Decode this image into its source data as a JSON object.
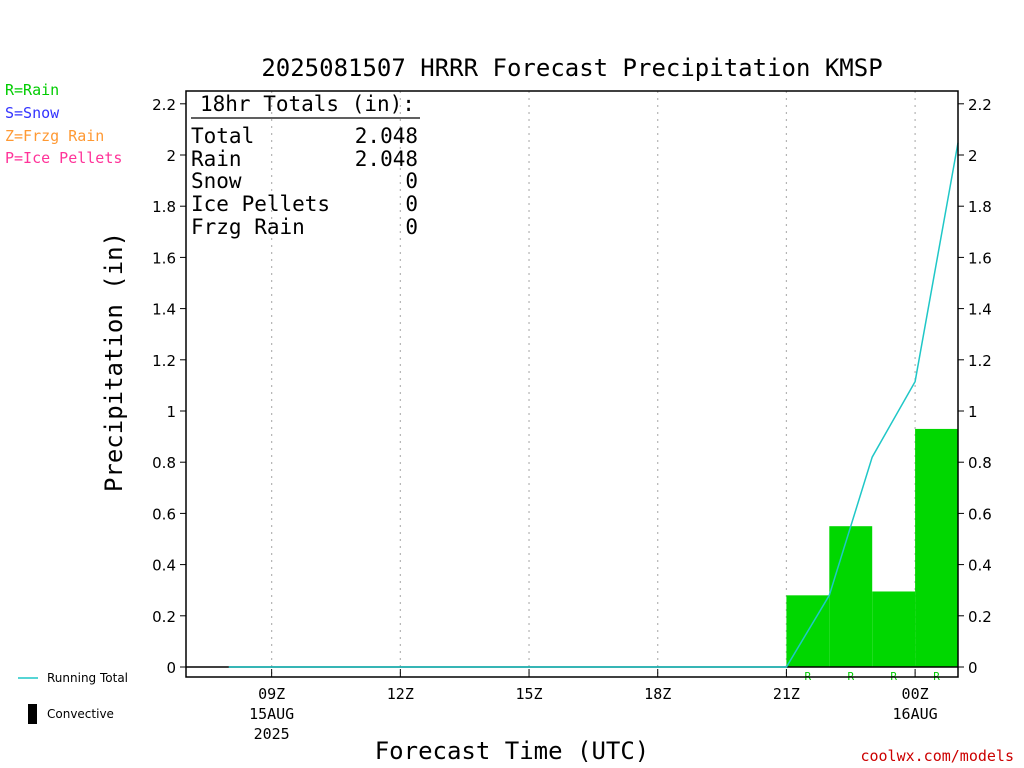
{
  "legend": {
    "codes": [
      {
        "label": "R=Rain",
        "color": "#00cc00"
      },
      {
        "label": "S=Snow",
        "color": "#3333ff"
      },
      {
        "label": "Z=Frzg Rain",
        "color": "#ff9933"
      },
      {
        "label": "P=Ice Pellets",
        "color": "#ff3399"
      }
    ],
    "running_total": "Running Total",
    "convective": "Convective"
  },
  "totals_box": {
    "header": "18hr Totals (in):",
    "rows": [
      {
        "label": "Total",
        "value": "2.048"
      },
      {
        "label": "Rain",
        "value": "2.048"
      },
      {
        "label": "Snow",
        "value": "0"
      },
      {
        "label": "Ice Pellets",
        "value": "0"
      },
      {
        "label": "Frzg Rain",
        "value": "0"
      }
    ]
  },
  "credit": "coolwx.com/models",
  "colors": {
    "rain": "#00d700",
    "running_total": "#1fc7c7",
    "convective": "#000000",
    "credit": "#cc0000"
  },
  "chart_data": {
    "type": "bar",
    "title": "2025081507 HRRR Forecast Precipitation KMSP",
    "xlabel": "Forecast Time (UTC)",
    "ylabel": "Precipitation (in)",
    "ylim": [
      0,
      2.2
    ],
    "yticks": [
      0,
      0.2,
      0.4,
      0.6,
      0.8,
      1,
      1.2,
      1.4,
      1.6,
      1.8,
      2,
      2.2
    ],
    "ytick_labels": [
      "0",
      "0.2",
      "0.4",
      "0.6",
      "0.8",
      "1",
      "1.2",
      "1.4",
      "1.6",
      "1.8",
      "2",
      "2.2"
    ],
    "x_range": [
      "2025-08-15 07Z",
      "2025-08-16 01Z"
    ],
    "xticks": [
      {
        "time": "2025-08-15 09Z",
        "label": "09Z",
        "date": "15AUG",
        "year": "2025"
      },
      {
        "time": "2025-08-15 12Z",
        "label": "12Z"
      },
      {
        "time": "2025-08-15 15Z",
        "label": "15Z"
      },
      {
        "time": "2025-08-15 18Z",
        "label": "18Z"
      },
      {
        "time": "2025-08-15 21Z",
        "label": "21Z"
      },
      {
        "time": "2025-08-16 00Z",
        "label": "00Z",
        "date": "16AUG"
      }
    ],
    "grid": "vertical dotted",
    "series": [
      {
        "name": "Rain",
        "kind": "hourly bars",
        "times": [
          "2025-08-15 22Z",
          "2025-08-15 23Z",
          "2025-08-16 00Z",
          "2025-08-16 01Z"
        ],
        "values": [
          0.28,
          0.55,
          0.295,
          0.93
        ],
        "ptype": [
          "R",
          "R",
          "R",
          "R"
        ]
      },
      {
        "name": "Running Total",
        "kind": "line",
        "times": [
          "2025-08-15 08Z",
          "2025-08-15 09Z",
          "2025-08-15 10Z",
          "2025-08-15 11Z",
          "2025-08-15 12Z",
          "2025-08-15 13Z",
          "2025-08-15 14Z",
          "2025-08-15 15Z",
          "2025-08-15 16Z",
          "2025-08-15 17Z",
          "2025-08-15 18Z",
          "2025-08-15 19Z",
          "2025-08-15 20Z",
          "2025-08-15 21Z",
          "2025-08-15 22Z",
          "2025-08-15 23Z",
          "2025-08-16 00Z",
          "2025-08-16 01Z"
        ],
        "values": [
          0,
          0,
          0,
          0,
          0,
          0,
          0,
          0,
          0,
          0,
          0,
          0,
          0,
          0,
          0.28,
          0.82,
          1.115,
          2.048
        ]
      },
      {
        "name": "Convective",
        "kind": "hourly bars",
        "times": [
          "2025-08-15 08Z",
          "2025-08-15 09Z",
          "2025-08-15 10Z",
          "2025-08-15 11Z",
          "2025-08-15 12Z",
          "2025-08-15 13Z",
          "2025-08-15 14Z",
          "2025-08-15 15Z",
          "2025-08-15 16Z",
          "2025-08-15 17Z",
          "2025-08-15 18Z",
          "2025-08-15 19Z",
          "2025-08-15 20Z",
          "2025-08-15 21Z",
          "2025-08-15 22Z",
          "2025-08-15 23Z",
          "2025-08-16 00Z",
          "2025-08-16 01Z"
        ],
        "values": [
          0,
          0,
          0,
          0,
          0,
          0,
          0,
          0,
          0,
          0,
          0,
          0,
          0,
          0,
          0,
          0,
          0,
          0
        ]
      }
    ]
  }
}
